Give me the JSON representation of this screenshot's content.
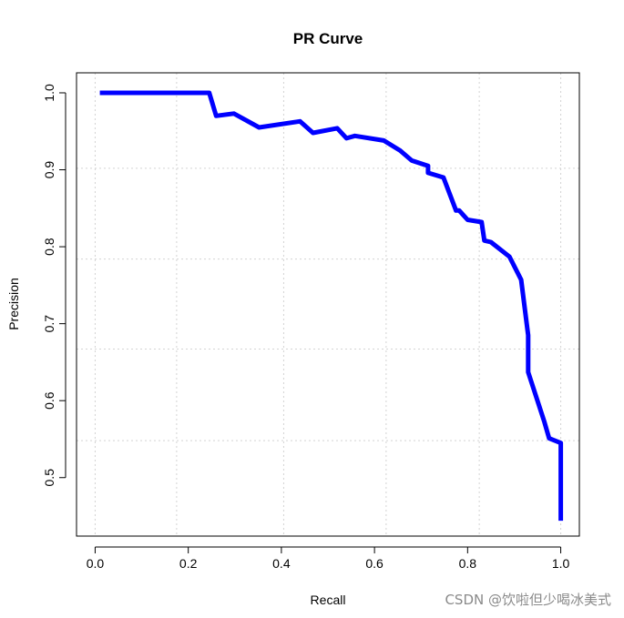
{
  "chart_data": {
    "type": "line",
    "title": "PR Curve",
    "xlabel": "Recall",
    "ylabel": "Precision",
    "xlim": [
      -0.04,
      1.04
    ],
    "ylim": [
      0.424,
      1.026
    ],
    "xticks": [
      "0.0",
      "0.2",
      "0.4",
      "0.6",
      "0.8",
      "1.0"
    ],
    "yticks": [
      "0.5",
      "0.6",
      "0.7",
      "0.8",
      "0.9",
      "1.0"
    ],
    "grid_x": [
      0.0,
      0.175,
      0.405,
      0.625,
      0.825,
      1.0
    ],
    "grid_y": [
      0.548,
      0.667,
      0.784,
      0.902
    ],
    "grid": true,
    "line_color": "#0000ff",
    "series": [
      {
        "x": [
          0.01,
          0.245,
          0.26,
          0.298,
          0.352,
          0.44,
          0.468,
          0.52,
          0.54,
          0.558,
          0.62,
          0.655,
          0.68,
          0.715,
          0.715,
          0.748,
          0.775,
          0.782,
          0.8,
          0.83,
          0.836,
          0.85,
          0.89,
          0.915,
          0.93,
          0.93,
          0.93,
          0.965,
          0.975,
          1.0,
          1.0
        ],
        "y": [
          1.0,
          1.0,
          0.97,
          0.973,
          0.955,
          0.963,
          0.948,
          0.954,
          0.941,
          0.944,
          0.938,
          0.925,
          0.912,
          0.905,
          0.896,
          0.89,
          0.847,
          0.847,
          0.835,
          0.832,
          0.808,
          0.806,
          0.787,
          0.757,
          0.685,
          0.64,
          0.637,
          0.572,
          0.551,
          0.545,
          0.444
        ]
      }
    ]
  },
  "watermark": "CSDN @饮啦但少喝冰美式"
}
